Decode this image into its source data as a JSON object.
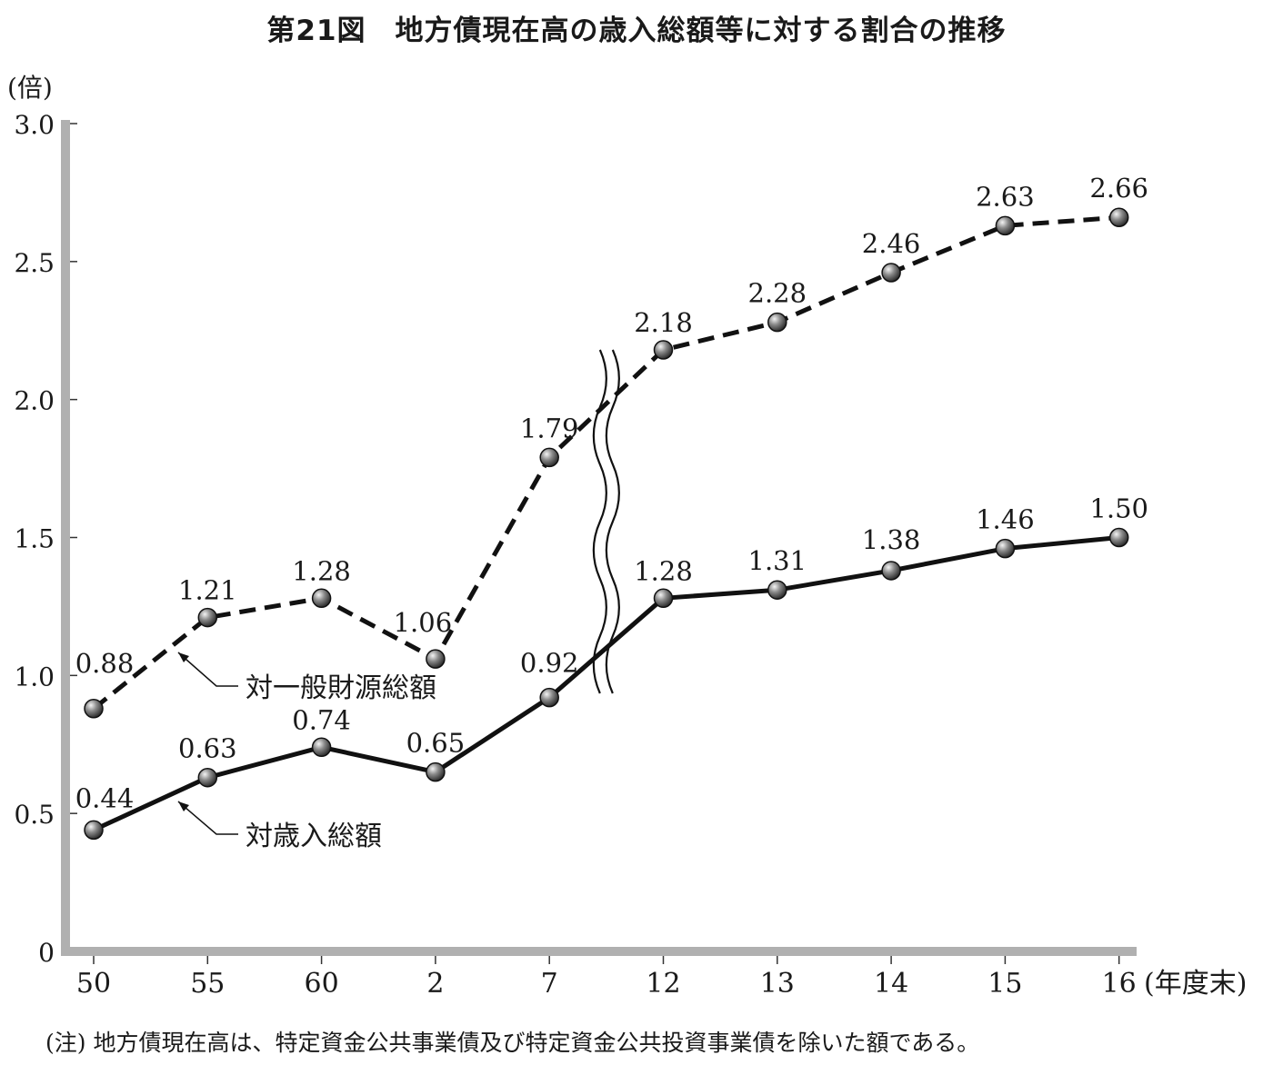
{
  "title": "第21図　地方債現在高の歳入総額等に対する割合の推移",
  "note": "(注) 地方債現在高は、特定資金公共事業債及び特定資金公共投資事業債を除いた額である。",
  "chart_data": {
    "type": "line",
    "title": "第21図　地方債現在高の歳入総額等に対する割合の推移",
    "ylabel": "(倍)",
    "xlabel": "(年度末)",
    "ylim": [
      0,
      3.0
    ],
    "yticks": [
      0,
      0.5,
      1.0,
      1.5,
      2.0,
      2.5,
      3.0
    ],
    "ytick_labels": [
      "0",
      "0.5",
      "1.0",
      "1.5",
      "2.0",
      "2.5",
      "3.0"
    ],
    "categories": [
      "50",
      "55",
      "60",
      "2",
      "7",
      "12",
      "13",
      "14",
      "15",
      "16"
    ],
    "axis_break_after": "7",
    "grid": false,
    "series": [
      {
        "name": "対一般財源総額",
        "style": "dashed",
        "values": [
          0.88,
          1.21,
          1.28,
          1.06,
          1.79,
          2.18,
          2.28,
          2.46,
          2.63,
          2.66
        ],
        "labels": [
          "0.88",
          "1.21",
          "1.28",
          "1.06",
          "1.79",
          "2.18",
          "2.28",
          "2.46",
          "2.63",
          "2.66"
        ]
      },
      {
        "name": "対歳入総額",
        "style": "solid",
        "values": [
          0.44,
          0.63,
          0.74,
          0.65,
          0.92,
          1.28,
          1.31,
          1.38,
          1.46,
          1.5
        ],
        "labels": [
          "0.44",
          "0.63",
          "0.74",
          "0.65",
          "0.92",
          "1.28",
          "1.31",
          "1.38",
          "1.46",
          "1.50"
        ]
      }
    ],
    "colors": {
      "line": "#111111",
      "axis": "#b0b0b0",
      "marker": "#777777"
    }
  }
}
